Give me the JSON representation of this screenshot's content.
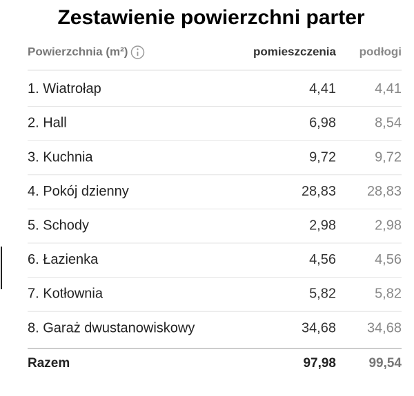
{
  "header": {
    "title": "Zestawienie powierzchni parter"
  },
  "table": {
    "columns": [
      "Powierzchnia (m²)",
      "pomieszczenia",
      "podłogi"
    ],
    "rows": [
      [
        "1. Wiatrołap",
        "4,41",
        "4,41"
      ],
      [
        "2. Hall",
        "6,98",
        "8,54"
      ],
      [
        "3. Kuchnia",
        "9,72",
        "9,72"
      ],
      [
        "4. Pokój dzienny",
        "28,83",
        "28,83"
      ],
      [
        "5. Schody",
        "2,98",
        "2,98"
      ],
      [
        "6. Łazienka",
        "4,56",
        "4,56"
      ],
      [
        "7. Kotłownia",
        "5,82",
        "5,82"
      ],
      [
        "8. Garaż dwustanowiskowy",
        "34,68",
        "34,68"
      ]
    ],
    "total": [
      "Razem",
      "97,98",
      "99,54"
    ]
  }
}
